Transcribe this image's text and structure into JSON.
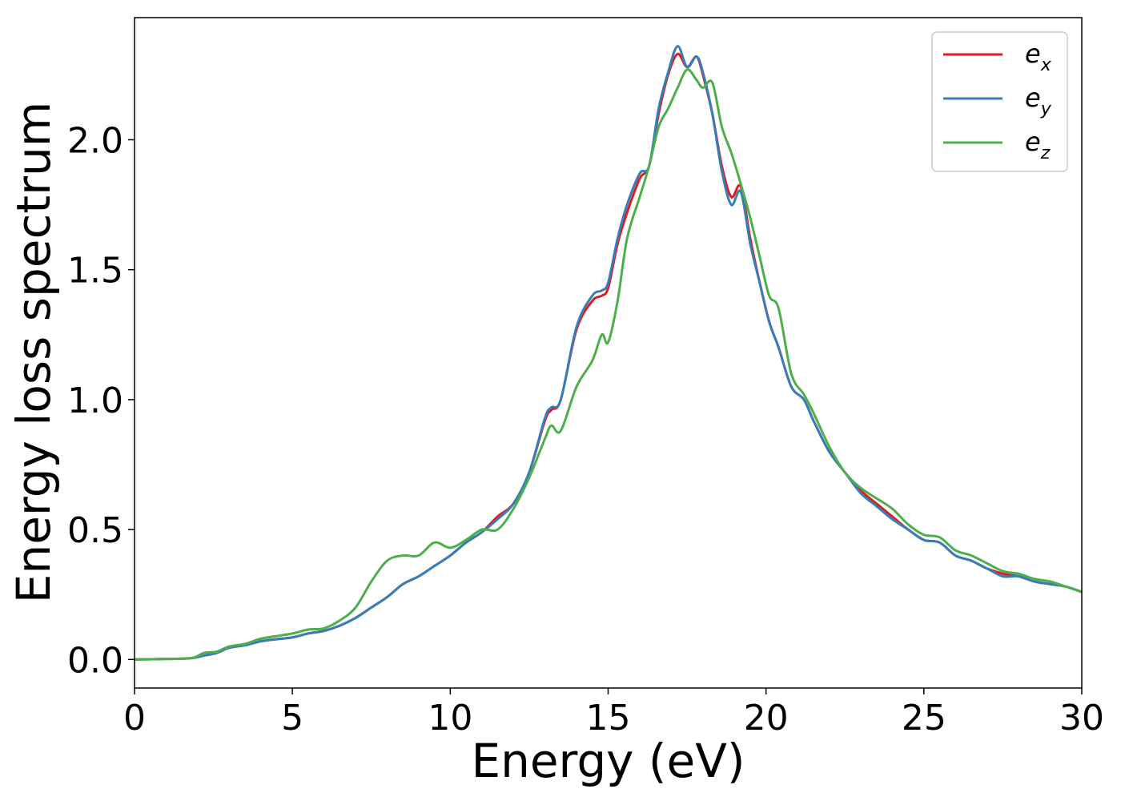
{
  "chart_data": {
    "type": "line",
    "title": "",
    "xlabel": "Energy (eV)",
    "ylabel": "Energy loss spectrum",
    "xlim": [
      0,
      30
    ],
    "ylim": [
      -0.11,
      2.47
    ],
    "xticks": [
      0,
      5,
      10,
      15,
      20,
      25,
      30
    ],
    "xtick_labels": [
      "0",
      "5",
      "10",
      "15",
      "20",
      "25",
      "30"
    ],
    "yticks": [
      0.0,
      0.5,
      1.0,
      1.5,
      2.0
    ],
    "ytick_labels": [
      "0.0",
      "0.5",
      "1.0",
      "1.5",
      "2.0"
    ],
    "grid": false,
    "legend_position": "top-right",
    "series": [
      {
        "name": "e_x",
        "label_base": "e",
        "label_sub": "x",
        "color": "#e41a1c",
        "x": [
          0,
          1,
          1.8,
          2.2,
          2.6,
          3,
          3.5,
          4,
          4.5,
          5,
          5.5,
          6,
          6.5,
          7,
          7.5,
          8,
          8.5,
          9,
          9.5,
          10,
          10.5,
          11,
          11.5,
          12,
          12.5,
          13,
          13.2,
          13.5,
          14,
          14.5,
          14.8,
          15,
          15.3,
          15.6,
          16,
          16.3,
          16.6,
          16.9,
          17.2,
          17.5,
          17.8,
          18,
          18.3,
          18.6,
          18.9,
          19.2,
          19.5,
          19.8,
          20.1,
          20.4,
          20.8,
          21.2,
          21.5,
          22,
          22.5,
          23,
          23.5,
          24,
          24.5,
          25,
          25.5,
          26,
          26.5,
          27,
          27.5,
          28,
          28.5,
          29,
          29.5,
          30
        ],
        "y": [
          0.0,
          0.002,
          0.005,
          0.015,
          0.025,
          0.045,
          0.055,
          0.07,
          0.078,
          0.085,
          0.1,
          0.11,
          0.13,
          0.16,
          0.2,
          0.24,
          0.29,
          0.32,
          0.36,
          0.4,
          0.45,
          0.49,
          0.55,
          0.6,
          0.72,
          0.92,
          0.96,
          1.0,
          1.27,
          1.38,
          1.4,
          1.43,
          1.6,
          1.72,
          1.85,
          1.9,
          2.1,
          2.25,
          2.33,
          2.28,
          2.32,
          2.25,
          2.1,
          1.9,
          1.78,
          1.82,
          1.62,
          1.45,
          1.3,
          1.2,
          1.05,
          1.0,
          0.92,
          0.8,
          0.72,
          0.65,
          0.6,
          0.55,
          0.5,
          0.46,
          0.45,
          0.4,
          0.38,
          0.35,
          0.33,
          0.32,
          0.3,
          0.29,
          0.28,
          0.26
        ]
      },
      {
        "name": "e_y",
        "label_base": "e",
        "label_sub": "y",
        "color": "#377eb8",
        "x": [
          0,
          1,
          1.8,
          2.2,
          2.6,
          3,
          3.5,
          4,
          4.5,
          5,
          5.5,
          6,
          6.5,
          7,
          7.5,
          8,
          8.5,
          9,
          9.5,
          10,
          10.5,
          11,
          11.5,
          12,
          12.5,
          13,
          13.2,
          13.5,
          14,
          14.5,
          14.8,
          15,
          15.3,
          15.6,
          16,
          16.3,
          16.6,
          16.9,
          17.2,
          17.5,
          17.8,
          18,
          18.3,
          18.6,
          18.9,
          19.2,
          19.5,
          19.8,
          20.1,
          20.4,
          20.8,
          21.2,
          21.5,
          22,
          22.5,
          23,
          23.5,
          24,
          24.5,
          25,
          25.5,
          26,
          26.5,
          27,
          27.5,
          28,
          28.5,
          29,
          29.5,
          30
        ],
        "y": [
          0.0,
          0.002,
          0.005,
          0.015,
          0.025,
          0.045,
          0.055,
          0.07,
          0.078,
          0.085,
          0.1,
          0.11,
          0.13,
          0.16,
          0.2,
          0.24,
          0.29,
          0.32,
          0.36,
          0.4,
          0.45,
          0.49,
          0.54,
          0.6,
          0.72,
          0.93,
          0.97,
          1.0,
          1.28,
          1.4,
          1.42,
          1.45,
          1.62,
          1.75,
          1.87,
          1.9,
          2.12,
          2.26,
          2.36,
          2.28,
          2.32,
          2.26,
          2.1,
          1.88,
          1.75,
          1.8,
          1.6,
          1.45,
          1.3,
          1.2,
          1.05,
          1.0,
          0.92,
          0.8,
          0.72,
          0.64,
          0.59,
          0.54,
          0.5,
          0.46,
          0.45,
          0.4,
          0.38,
          0.35,
          0.32,
          0.32,
          0.3,
          0.29,
          0.28,
          0.26
        ]
      },
      {
        "name": "e_z",
        "label_base": "e",
        "label_sub": "z",
        "color": "#4daf4a",
        "x": [
          0,
          1,
          1.8,
          2.2,
          2.6,
          3,
          3.5,
          4,
          4.5,
          5,
          5.5,
          6,
          6.5,
          7,
          7.5,
          8,
          8.5,
          9,
          9.5,
          10,
          10.5,
          11,
          11.5,
          12,
          12.5,
          13,
          13.2,
          13.5,
          14,
          14.5,
          14.8,
          15,
          15.3,
          15.6,
          16,
          16.3,
          16.6,
          16.9,
          17.2,
          17.5,
          17.8,
          18,
          18.3,
          18.6,
          18.9,
          19.2,
          19.5,
          19.8,
          20.1,
          20.4,
          20.8,
          21.2,
          21.5,
          22,
          22.5,
          23,
          23.5,
          24,
          24.5,
          25,
          25.5,
          26,
          26.5,
          27,
          27.5,
          28,
          28.5,
          29,
          29.5,
          30
        ],
        "y": [
          0.0,
          0.002,
          0.005,
          0.025,
          0.03,
          0.05,
          0.06,
          0.08,
          0.09,
          0.1,
          0.115,
          0.12,
          0.15,
          0.2,
          0.3,
          0.38,
          0.4,
          0.4,
          0.45,
          0.43,
          0.46,
          0.5,
          0.5,
          0.58,
          0.7,
          0.85,
          0.9,
          0.88,
          1.05,
          1.15,
          1.25,
          1.22,
          1.38,
          1.62,
          1.78,
          1.9,
          2.05,
          2.12,
          2.2,
          2.27,
          2.23,
          2.2,
          2.22,
          2.05,
          1.95,
          1.83,
          1.7,
          1.55,
          1.4,
          1.35,
          1.1,
          1.02,
          0.95,
          0.82,
          0.72,
          0.66,
          0.62,
          0.58,
          0.52,
          0.48,
          0.47,
          0.42,
          0.4,
          0.37,
          0.34,
          0.33,
          0.31,
          0.3,
          0.28,
          0.26
        ]
      }
    ]
  }
}
